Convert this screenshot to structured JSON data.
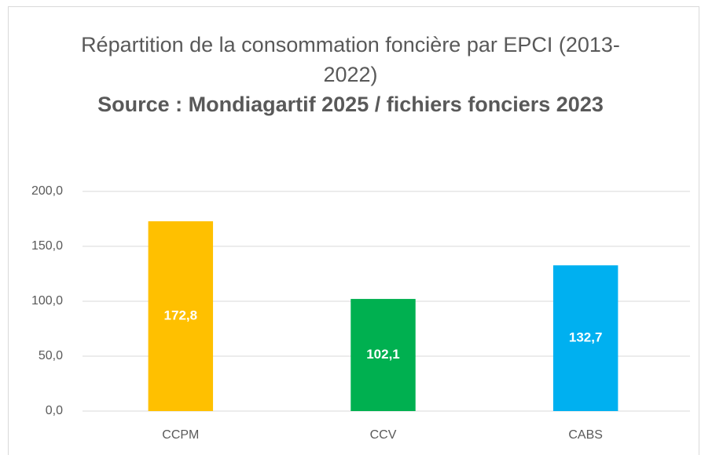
{
  "chart_data": {
    "type": "bar",
    "title": "Répartition de la consommation foncière par EPCI (2013-2022)",
    "subtitle": "Source : Mondiagartif 2025 / fichiers fonciers 2023",
    "categories": [
      "CCPM",
      "CCV",
      "CABS"
    ],
    "values": [
      172.8,
      102.1,
      132.7
    ],
    "value_labels": [
      "172,8",
      "102,1",
      "132,7"
    ],
    "colors": [
      "#FFC000",
      "#00B050",
      "#00B0F0"
    ],
    "ylim": [
      0,
      200
    ],
    "yticks": [
      {
        "value": 0,
        "label": "0,0"
      },
      {
        "value": 50,
        "label": "50,0"
      },
      {
        "value": 100,
        "label": "100,0"
      },
      {
        "value": 150,
        "label": "150,0"
      },
      {
        "value": 200,
        "label": "200,0"
      }
    ],
    "grid": true
  }
}
